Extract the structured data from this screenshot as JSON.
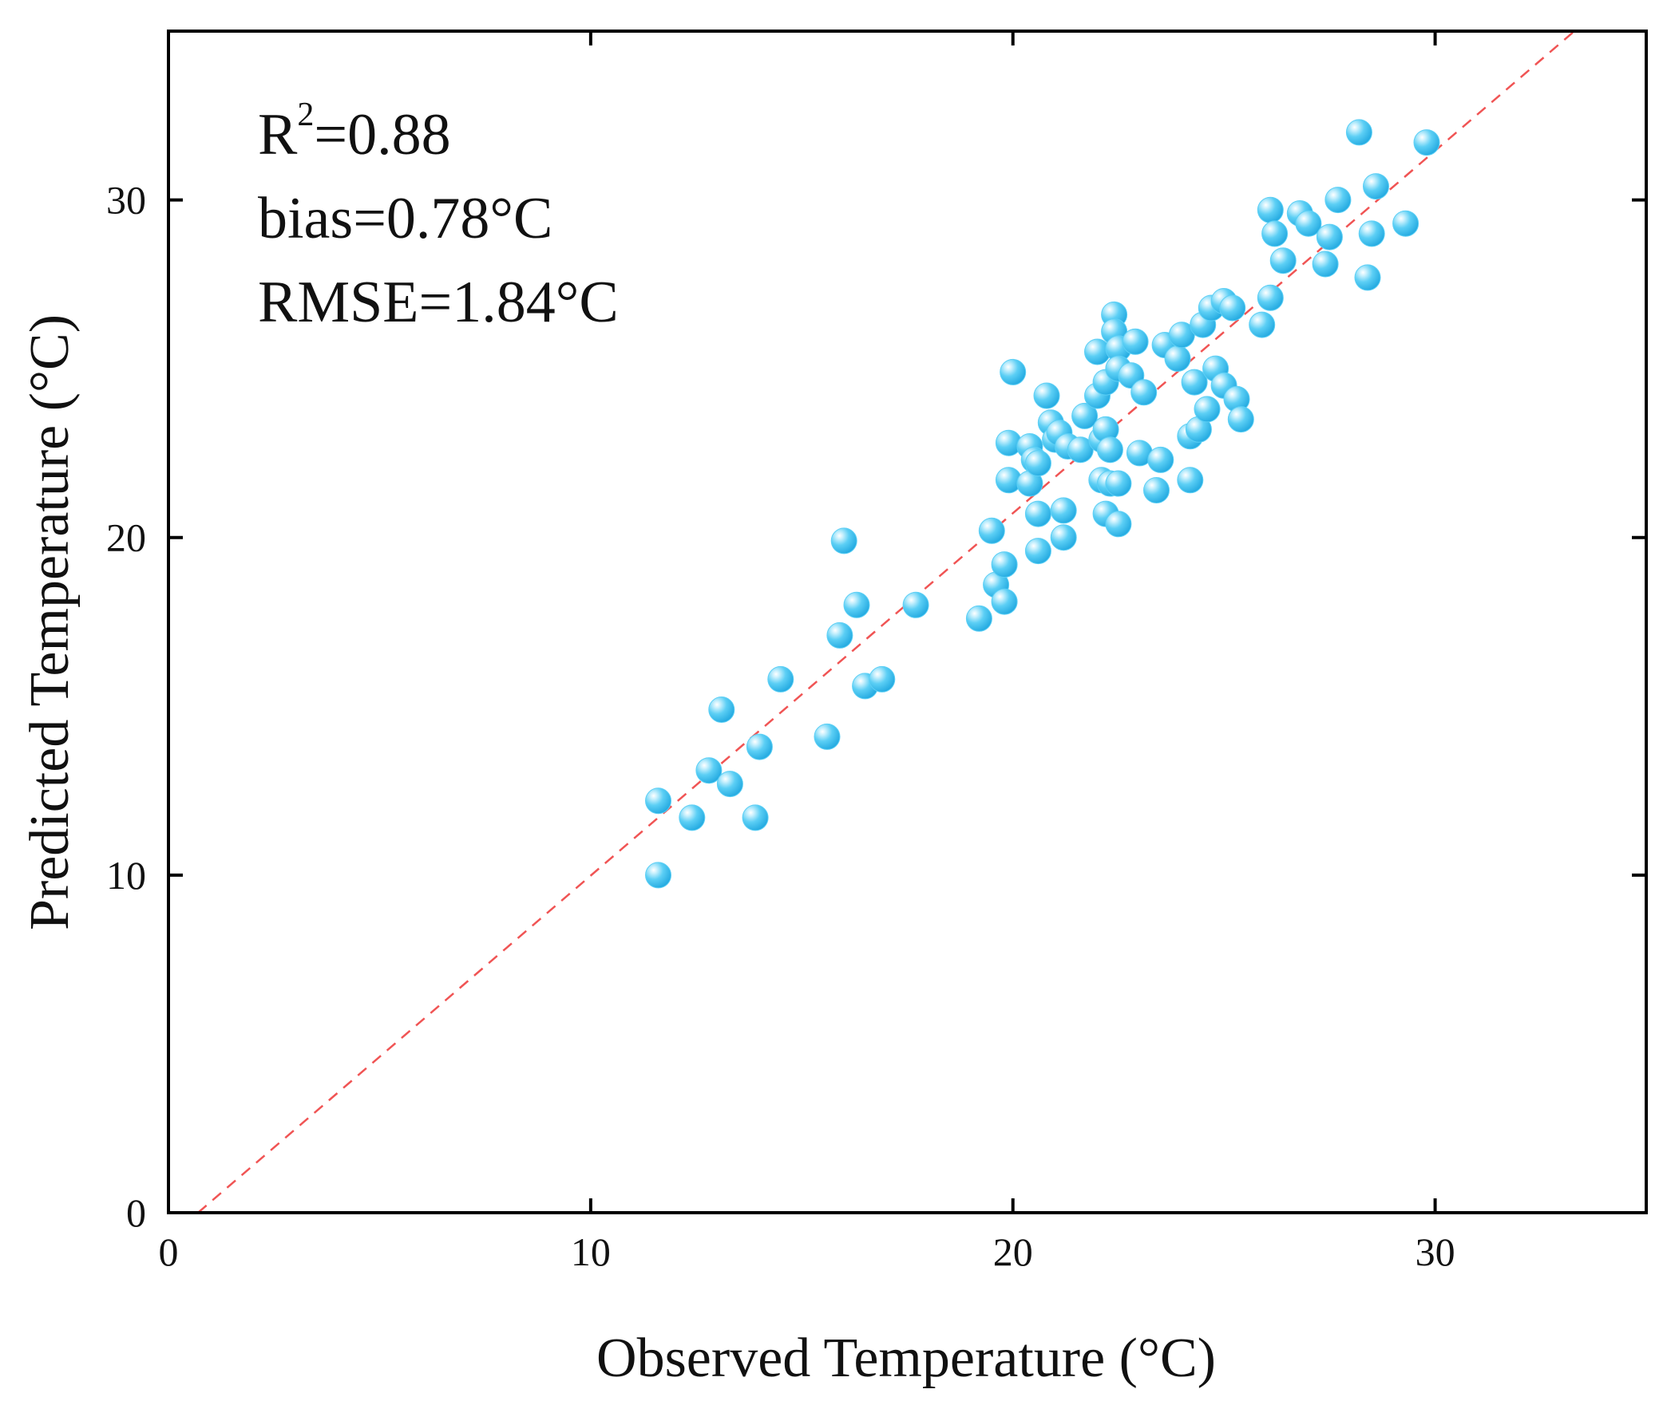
{
  "chart_data": {
    "type": "scatter",
    "title": "",
    "xlabel": "Observed  Temperature (°C)",
    "ylabel": "Predicted  Temperature (°C)",
    "xlim": [
      0,
      35
    ],
    "ylim": [
      0,
      35
    ],
    "xticks": [
      0,
      10,
      20,
      30
    ],
    "yticks": [
      0,
      10,
      20,
      30
    ],
    "xtick_labels": [
      "0",
      "10",
      "20",
      "30"
    ],
    "ytick_labels": [
      "0",
      "10",
      "20",
      "30"
    ],
    "grid": false,
    "legend": "none",
    "reference_line": {
      "type": "1:1",
      "style": "dashed",
      "color": "#f05454",
      "x": [
        0.7,
        33.3
      ],
      "y": [
        0,
        35
      ]
    },
    "annotations": {
      "r2_base": "R",
      "r2_sup": "2",
      "r2_value": "=0.88",
      "bias": "bias=0.78°C",
      "rmse": "RMSE=1.84°C"
    },
    "point_color": "#5ccff5",
    "series": [
      {
        "name": "Observed vs Predicted",
        "points": [
          [
            11.6,
            10.0
          ],
          [
            11.6,
            12.2
          ],
          [
            12.4,
            11.7
          ],
          [
            12.8,
            13.1
          ],
          [
            13.1,
            14.9
          ],
          [
            13.3,
            12.7
          ],
          [
            13.9,
            11.7
          ],
          [
            14.0,
            13.8
          ],
          [
            14.5,
            15.8
          ],
          [
            15.6,
            14.1
          ],
          [
            15.9,
            17.1
          ],
          [
            16.0,
            19.9
          ],
          [
            16.3,
            18.0
          ],
          [
            16.5,
            15.6
          ],
          [
            16.9,
            15.8
          ],
          [
            17.7,
            18.0
          ],
          [
            19.2,
            17.6
          ],
          [
            19.5,
            20.2
          ],
          [
            19.6,
            18.6
          ],
          [
            19.8,
            19.2
          ],
          [
            19.8,
            18.1
          ],
          [
            19.9,
            21.7
          ],
          [
            19.9,
            22.8
          ],
          [
            20.0,
            24.9
          ],
          [
            20.4,
            21.6
          ],
          [
            20.4,
            22.7
          ],
          [
            20.5,
            22.3
          ],
          [
            20.6,
            22.2
          ],
          [
            20.6,
            19.6
          ],
          [
            20.6,
            20.7
          ],
          [
            20.8,
            24.2
          ],
          [
            20.9,
            23.4
          ],
          [
            21.0,
            22.9
          ],
          [
            21.1,
            23.1
          ],
          [
            21.2,
            20.0
          ],
          [
            21.2,
            20.8
          ],
          [
            21.3,
            22.7
          ],
          [
            21.6,
            22.6
          ],
          [
            21.7,
            23.6
          ],
          [
            22.0,
            25.5
          ],
          [
            22.0,
            24.2
          ],
          [
            22.1,
            22.9
          ],
          [
            22.1,
            21.7
          ],
          [
            22.2,
            20.7
          ],
          [
            22.2,
            24.6
          ],
          [
            22.2,
            23.2
          ],
          [
            22.3,
            22.6
          ],
          [
            22.3,
            21.6
          ],
          [
            22.4,
            26.6
          ],
          [
            22.4,
            26.1
          ],
          [
            22.5,
            25.6
          ],
          [
            22.5,
            25.0
          ],
          [
            22.5,
            21.6
          ],
          [
            22.5,
            20.4
          ],
          [
            22.8,
            24.8
          ],
          [
            22.9,
            25.8
          ],
          [
            23.0,
            22.5
          ],
          [
            23.1,
            24.3
          ],
          [
            23.4,
            21.4
          ],
          [
            23.5,
            22.3
          ],
          [
            23.6,
            25.7
          ],
          [
            23.9,
            25.3
          ],
          [
            24.0,
            26.0
          ],
          [
            24.2,
            21.7
          ],
          [
            24.2,
            23.0
          ],
          [
            24.3,
            24.6
          ],
          [
            24.4,
            23.2
          ],
          [
            24.5,
            26.3
          ],
          [
            24.6,
            23.8
          ],
          [
            24.7,
            26.8
          ],
          [
            24.8,
            25.0
          ],
          [
            25.0,
            27.0
          ],
          [
            25.0,
            24.5
          ],
          [
            25.2,
            26.8
          ],
          [
            25.3,
            24.1
          ],
          [
            25.4,
            23.5
          ],
          [
            25.9,
            26.3
          ],
          [
            26.1,
            29.7
          ],
          [
            26.1,
            27.1
          ],
          [
            26.2,
            29.0
          ],
          [
            26.4,
            28.2
          ],
          [
            26.8,
            29.6
          ],
          [
            27.0,
            29.3
          ],
          [
            27.4,
            28.1
          ],
          [
            27.5,
            28.9
          ],
          [
            27.7,
            30.0
          ],
          [
            28.2,
            32.0
          ],
          [
            28.4,
            27.7
          ],
          [
            28.5,
            29.0
          ],
          [
            28.6,
            30.4
          ],
          [
            29.3,
            29.3
          ],
          [
            29.8,
            31.7
          ]
        ]
      }
    ]
  }
}
